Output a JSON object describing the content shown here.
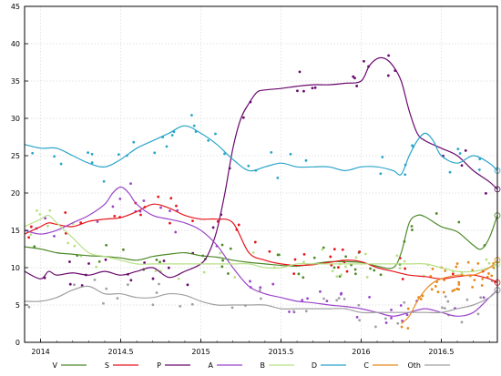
{
  "chart_data": {
    "type": "line",
    "title": "",
    "xlabel": "",
    "ylabel": "",
    "xlim": [
      2013.9,
      2016.85
    ],
    "ylim": [
      0,
      45
    ],
    "grid": true,
    "legend_placement": "bottom",
    "x_ticks": [
      2014,
      2014.5,
      2015,
      2015.5,
      2016,
      2016.5
    ],
    "x_tick_labels": [
      "2014",
      "2014.5",
      "2015",
      "2015.5",
      "2016",
      "2016.5"
    ],
    "y_ticks": [
      0,
      5,
      10,
      15,
      20,
      25,
      30,
      35,
      40,
      45
    ],
    "y_tick_labels": [
      "0",
      "5",
      "10",
      "15",
      "20",
      "25",
      "30",
      "35",
      "40",
      "45"
    ],
    "series": [
      {
        "name": "V",
        "color": "#4f8a2a",
        "x": [
          2013.9,
          2014.0,
          2014.1,
          2014.2,
          2014.3,
          2014.4,
          2014.5,
          2014.6,
          2014.7,
          2014.8,
          2014.9,
          2015.0,
          2015.1,
          2015.2,
          2015.3,
          2015.4,
          2015.5,
          2015.6,
          2015.7,
          2015.8,
          2015.9,
          2016.0,
          2016.1,
          2016.2,
          2016.25,
          2016.3,
          2016.35,
          2016.4,
          2016.5,
          2016.6,
          2016.7,
          2016.75,
          2016.8,
          2016.85
        ],
        "y": [
          12.8,
          12.5,
          12.0,
          11.8,
          11.6,
          11.5,
          11.3,
          11.0,
          11.5,
          11.8,
          12.0,
          11.6,
          11.4,
          11.0,
          10.7,
          10.5,
          10.3,
          10.2,
          10.5,
          10.8,
          10.8,
          10.7,
          10.2,
          10.0,
          12.0,
          16.0,
          17.0,
          16.8,
          15.5,
          14.8,
          13.0,
          12.5,
          14.0,
          17.0
        ]
      },
      {
        "name": "S",
        "color": "#e8141b",
        "x": [
          2013.9,
          2014.0,
          2014.05,
          2014.1,
          2014.2,
          2014.3,
          2014.4,
          2014.5,
          2014.6,
          2014.7,
          2014.8,
          2014.9,
          2015.0,
          2015.1,
          2015.2,
          2015.3,
          2015.4,
          2015.5,
          2015.6,
          2015.7,
          2015.8,
          2015.9,
          2016.0,
          2016.1,
          2016.2,
          2016.3,
          2016.4,
          2016.5,
          2016.6,
          2016.7,
          2016.8,
          2016.85
        ],
        "y": [
          14.5,
          15.5,
          16.0,
          15.8,
          15.5,
          16.2,
          16.5,
          16.7,
          17.5,
          18.5,
          18.0,
          17.0,
          16.5,
          16.5,
          16.0,
          12.0,
          11.0,
          10.5,
          10.3,
          10.4,
          10.7,
          11.0,
          10.8,
          10.0,
          9.5,
          9.0,
          8.8,
          8.5,
          8.8,
          9.0,
          8.5,
          8.0
        ]
      },
      {
        "name": "P",
        "color": "#6a0a6e",
        "x": [
          2013.9,
          2014.0,
          2014.05,
          2014.1,
          2014.2,
          2014.3,
          2014.4,
          2014.5,
          2014.6,
          2014.7,
          2014.8,
          2014.9,
          2015.0,
          2015.05,
          2015.1,
          2015.15,
          2015.2,
          2015.25,
          2015.3,
          2015.35,
          2015.4,
          2015.5,
          2015.6,
          2015.7,
          2015.8,
          2015.9,
          2016.0,
          2016.05,
          2016.1,
          2016.15,
          2016.2,
          2016.25,
          2016.3,
          2016.35,
          2016.4,
          2016.5,
          2016.6,
          2016.7,
          2016.8,
          2016.85
        ],
        "y": [
          9.5,
          8.5,
          9.5,
          9.0,
          9.3,
          9.0,
          9.5,
          9.0,
          9.5,
          10.0,
          8.7,
          9.5,
          10.5,
          12.0,
          15.0,
          20.0,
          26.0,
          30.0,
          32.0,
          33.5,
          33.8,
          34.0,
          34.3,
          34.5,
          34.5,
          34.7,
          35.0,
          37.0,
          38.0,
          38.0,
          37.0,
          35.0,
          31.0,
          28.0,
          27.0,
          26.0,
          25.0,
          23.0,
          21.5,
          20.5
        ]
      },
      {
        "name": "A",
        "color": "#9b45c9",
        "x": [
          2013.9,
          2014.0,
          2014.1,
          2014.2,
          2014.3,
          2014.4,
          2014.45,
          2014.5,
          2014.55,
          2014.6,
          2014.7,
          2014.8,
          2014.9,
          2015.0,
          2015.1,
          2015.2,
          2015.3,
          2015.4,
          2015.5,
          2015.6,
          2015.7,
          2015.8,
          2015.9,
          2016.0,
          2016.1,
          2016.2,
          2016.3,
          2016.4,
          2016.5,
          2016.6,
          2016.7,
          2016.8,
          2016.85
        ],
        "y": [
          15.0,
          14.5,
          15.0,
          16.0,
          17.0,
          18.5,
          20.0,
          20.8,
          20.0,
          18.5,
          17.0,
          16.5,
          16.0,
          15.0,
          13.0,
          10.0,
          7.5,
          6.5,
          6.0,
          5.5,
          5.3,
          5.0,
          4.8,
          4.5,
          4.0,
          3.5,
          4.0,
          4.5,
          4.0,
          3.5,
          4.0,
          6.0,
          7.0
        ]
      },
      {
        "name": "B",
        "color": "#b8e086",
        "x": [
          2013.9,
          2014.0,
          2014.05,
          2014.1,
          2014.2,
          2014.3,
          2014.4,
          2014.5,
          2014.6,
          2014.7,
          2014.8,
          2014.9,
          2015.0,
          2015.1,
          2015.2,
          2015.3,
          2015.4,
          2015.5,
          2015.6,
          2015.7,
          2015.8,
          2015.9,
          2016.0,
          2016.1,
          2016.2,
          2016.3,
          2016.4,
          2016.5,
          2016.6,
          2016.7,
          2016.8,
          2016.85
        ],
        "y": [
          15.5,
          16.5,
          17.0,
          16.0,
          14.0,
          12.0,
          11.5,
          11.0,
          10.5,
          10.5,
          10.5,
          10.5,
          10.5,
          10.5,
          10.5,
          10.5,
          10.0,
          10.0,
          10.5,
          10.5,
          10.5,
          10.5,
          10.5,
          10.5,
          10.5,
          10.5,
          10.5,
          10.0,
          9.5,
          9.5,
          10.0,
          10.5
        ]
      },
      {
        "name": "D",
        "color": "#2aa5c9",
        "x": [
          2013.9,
          2014.0,
          2014.1,
          2014.2,
          2014.3,
          2014.4,
          2014.5,
          2014.6,
          2014.7,
          2014.8,
          2014.9,
          2015.0,
          2015.1,
          2015.2,
          2015.3,
          2015.4,
          2015.5,
          2015.6,
          2015.7,
          2015.8,
          2015.9,
          2016.0,
          2016.1,
          2016.2,
          2016.25,
          2016.3,
          2016.35,
          2016.4,
          2016.45,
          2016.5,
          2016.6,
          2016.7,
          2016.8,
          2016.85
        ],
        "y": [
          26.5,
          26.0,
          26.0,
          25.0,
          24.0,
          23.5,
          24.5,
          26.0,
          27.0,
          28.0,
          29.0,
          28.0,
          26.5,
          24.5,
          23.0,
          23.5,
          24.0,
          23.5,
          23.5,
          23.5,
          23.0,
          23.5,
          23.5,
          23.0,
          22.5,
          25.0,
          27.0,
          28.0,
          27.0,
          25.0,
          24.0,
          25.0,
          24.0,
          23.0
        ]
      },
      {
        "name": "C",
        "color": "#e8891b",
        "x": [
          2016.25,
          2016.3,
          2016.35,
          2016.4,
          2016.45,
          2016.5,
          2016.6,
          2016.7,
          2016.8,
          2016.85
        ],
        "y": [
          2.5,
          3.5,
          5.5,
          7.0,
          8.0,
          8.5,
          9.0,
          9.0,
          10.0,
          11.0
        ]
      },
      {
        "name": "Oth",
        "color": "#a0a0a0",
        "x": [
          2013.9,
          2014.0,
          2014.1,
          2014.2,
          2014.3,
          2014.4,
          2014.5,
          2014.6,
          2014.7,
          2014.8,
          2014.9,
          2015.0,
          2015.1,
          2015.2,
          2015.3,
          2015.4,
          2015.5,
          2015.6,
          2015.7,
          2015.8,
          2015.9,
          2016.0,
          2016.1,
          2016.2,
          2016.3,
          2016.4,
          2016.5,
          2016.6,
          2016.7,
          2016.8,
          2016.85
        ],
        "y": [
          5.5,
          5.5,
          6.0,
          7.0,
          7.5,
          6.5,
          6.5,
          6.0,
          6.0,
          6.5,
          6.3,
          5.5,
          5.0,
          5.0,
          5.0,
          5.0,
          4.5,
          4.5,
          4.5,
          4.5,
          4.5,
          4.0,
          4.0,
          4.0,
          4.0,
          4.0,
          4.0,
          4.5,
          5.0,
          6.0,
          7.0
        ]
      }
    ],
    "legend": [
      {
        "label": "V",
        "color": "#4f8a2a"
      },
      {
        "label": "S",
        "color": "#e8141b"
      },
      {
        "label": "P",
        "color": "#6a0a6e"
      },
      {
        "label": "A",
        "color": "#9b45c9"
      },
      {
        "label": "B",
        "color": "#b8e086"
      },
      {
        "label": "D",
        "color": "#2aa5c9"
      },
      {
        "label": "C",
        "color": "#e8891b"
      },
      {
        "label": "Oth",
        "color": "#a0a0a0"
      }
    ]
  }
}
